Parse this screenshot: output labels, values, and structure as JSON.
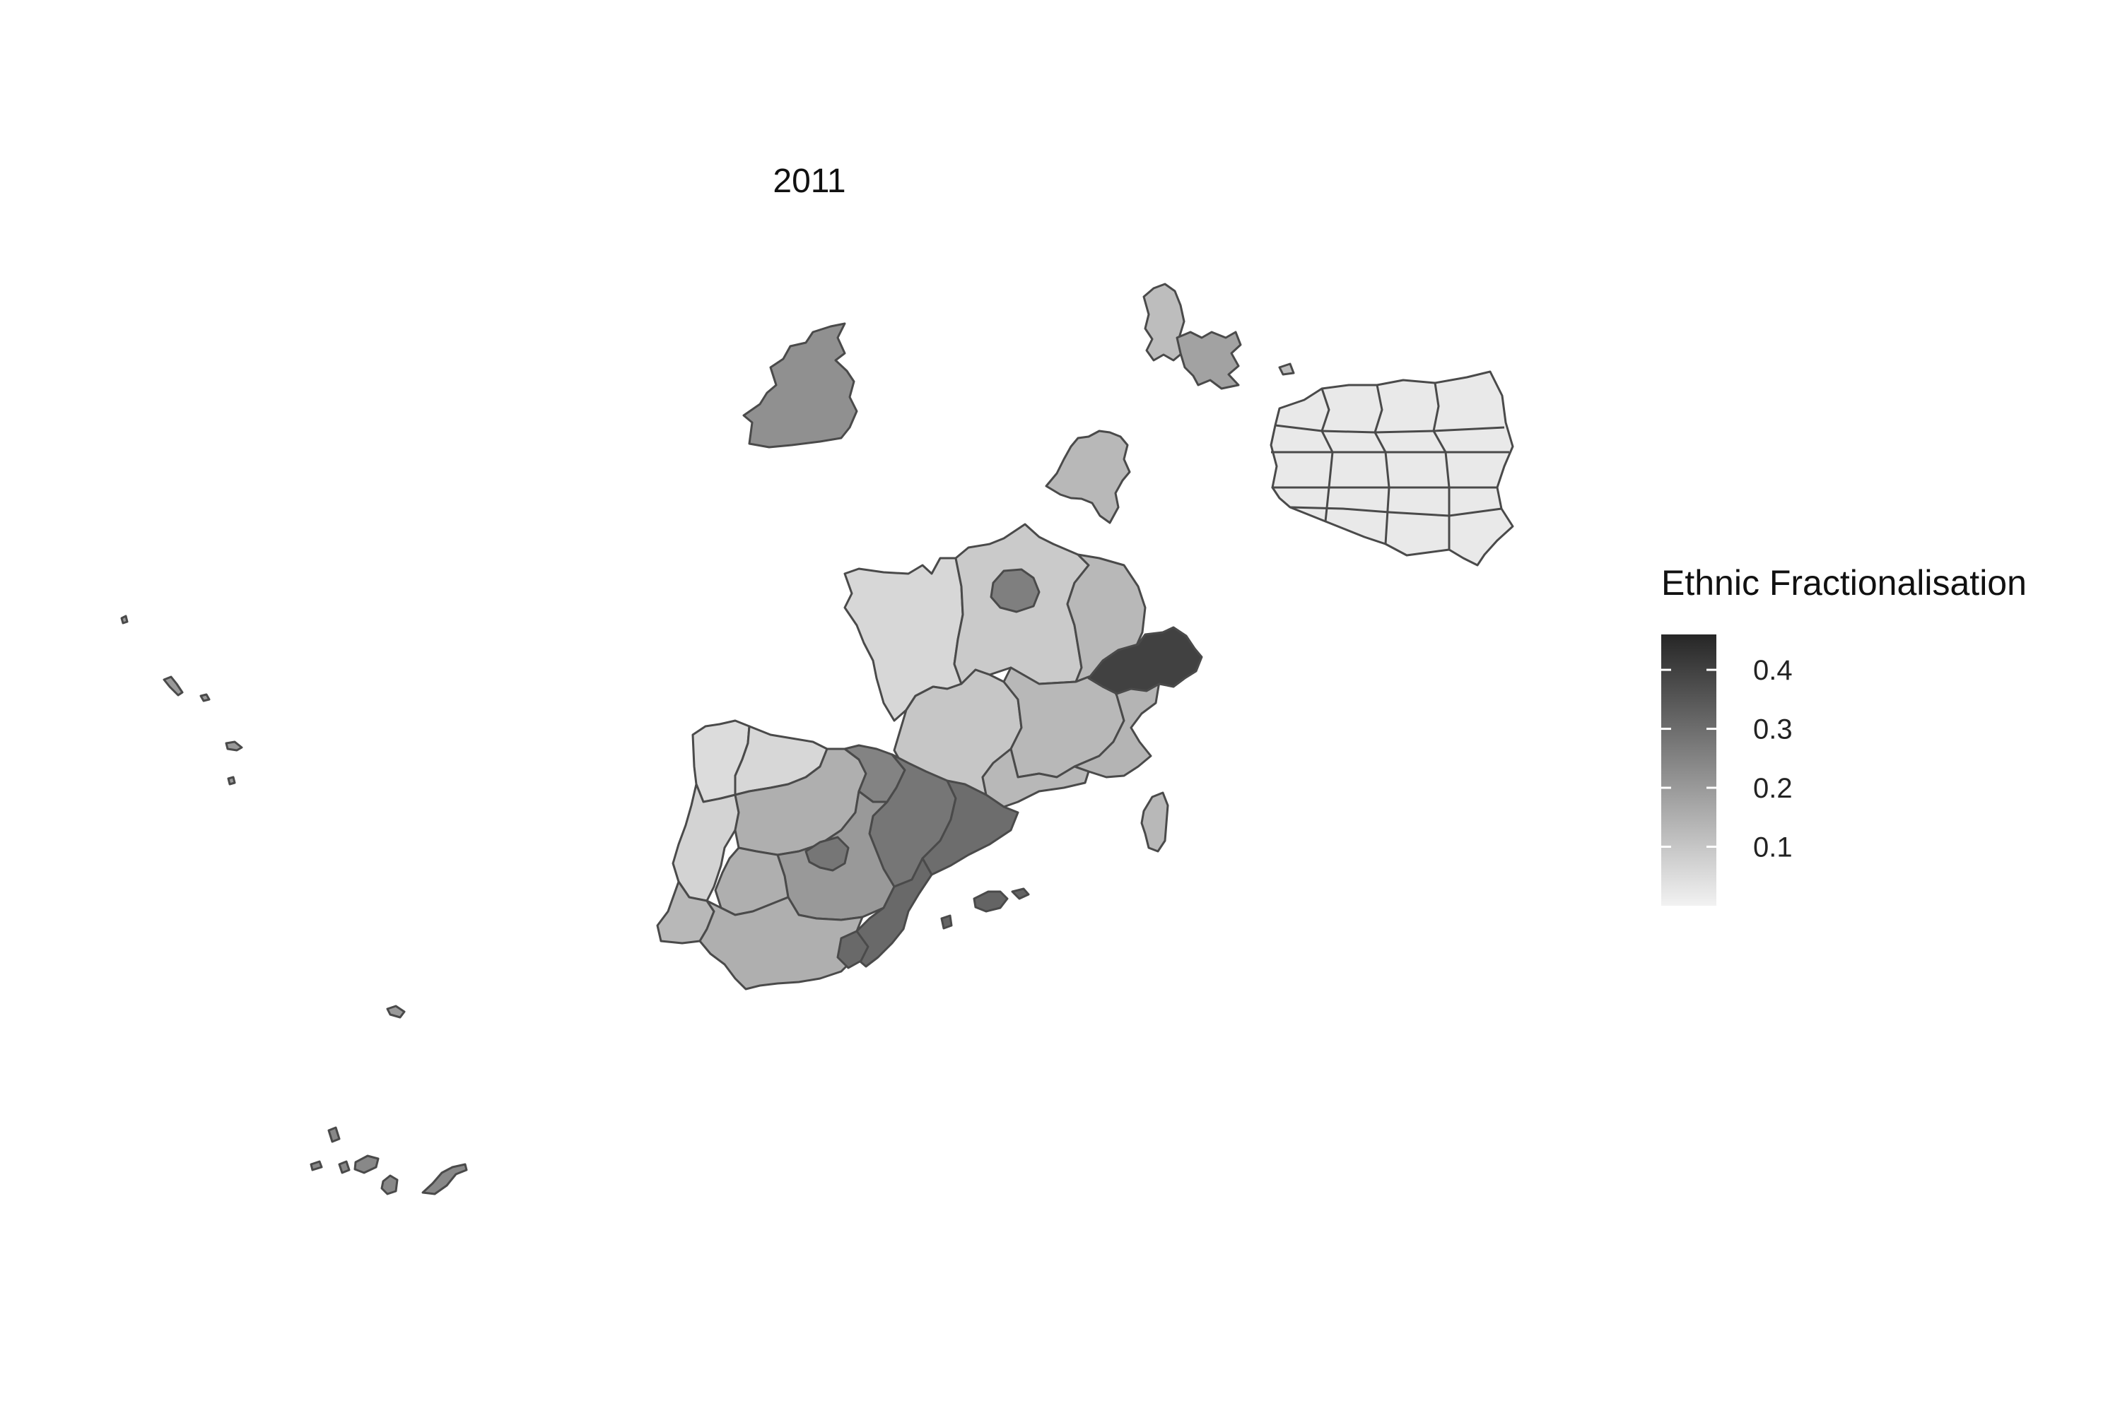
{
  "title": "2011",
  "legend": {
    "title": "Ethnic Fractionalisation",
    "ticks": [
      {
        "label": "0.4",
        "value": 0.4
      },
      {
        "label": "0.3",
        "value": 0.3
      },
      {
        "label": "0.2",
        "value": 0.2
      },
      {
        "label": "0.1",
        "value": 0.1
      }
    ],
    "range": [
      0.0,
      0.46
    ],
    "gradient": {
      "low": "#f2f2f2",
      "high": "#262626"
    }
  },
  "border_color": "#4a4a4a",
  "regions": [
    {
      "name": "ireland-region",
      "value": 0.22
    },
    {
      "name": "denmark-region-a",
      "value": 0.12
    },
    {
      "name": "denmark-region-b",
      "value": 0.18
    },
    {
      "name": "netherlands-region",
      "value": 0.13
    },
    {
      "name": "poland-north",
      "value": 0.02
    },
    {
      "name": "poland-south",
      "value": 0.02
    },
    {
      "name": "france-northwest",
      "value": 0.06
    },
    {
      "name": "france-north-central",
      "value": 0.09
    },
    {
      "name": "france-paris",
      "value": 0.26
    },
    {
      "name": "france-northeast",
      "value": 0.13
    },
    {
      "name": "france-southwest",
      "value": 0.1
    },
    {
      "name": "france-south-central",
      "value": 0.13
    },
    {
      "name": "france-southeast",
      "value": 0.14
    },
    {
      "name": "switzerland",
      "value": 0.4
    },
    {
      "name": "corsica",
      "value": 0.13
    },
    {
      "name": "spain-northwest",
      "value": 0.06
    },
    {
      "name": "spain-north-central",
      "value": 0.15
    },
    {
      "name": "spain-basque",
      "value": 0.25
    },
    {
      "name": "spain-central",
      "value": 0.2
    },
    {
      "name": "spain-madrid",
      "value": 0.28
    },
    {
      "name": "spain-aragon",
      "value": 0.28
    },
    {
      "name": "spain-catalonia",
      "value": 0.3
    },
    {
      "name": "spain-valencia",
      "value": 0.31
    },
    {
      "name": "spain-andalusia",
      "value": 0.15
    },
    {
      "name": "portugal-north",
      "value": 0.05
    },
    {
      "name": "portugal-central",
      "value": 0.07
    },
    {
      "name": "portugal-south",
      "value": 0.13
    },
    {
      "name": "balearic-islands",
      "value": 0.32
    },
    {
      "name": "canary-islands",
      "value": 0.24
    },
    {
      "name": "azores",
      "value": 0.2
    },
    {
      "name": "madeira",
      "value": 0.2
    }
  ]
}
